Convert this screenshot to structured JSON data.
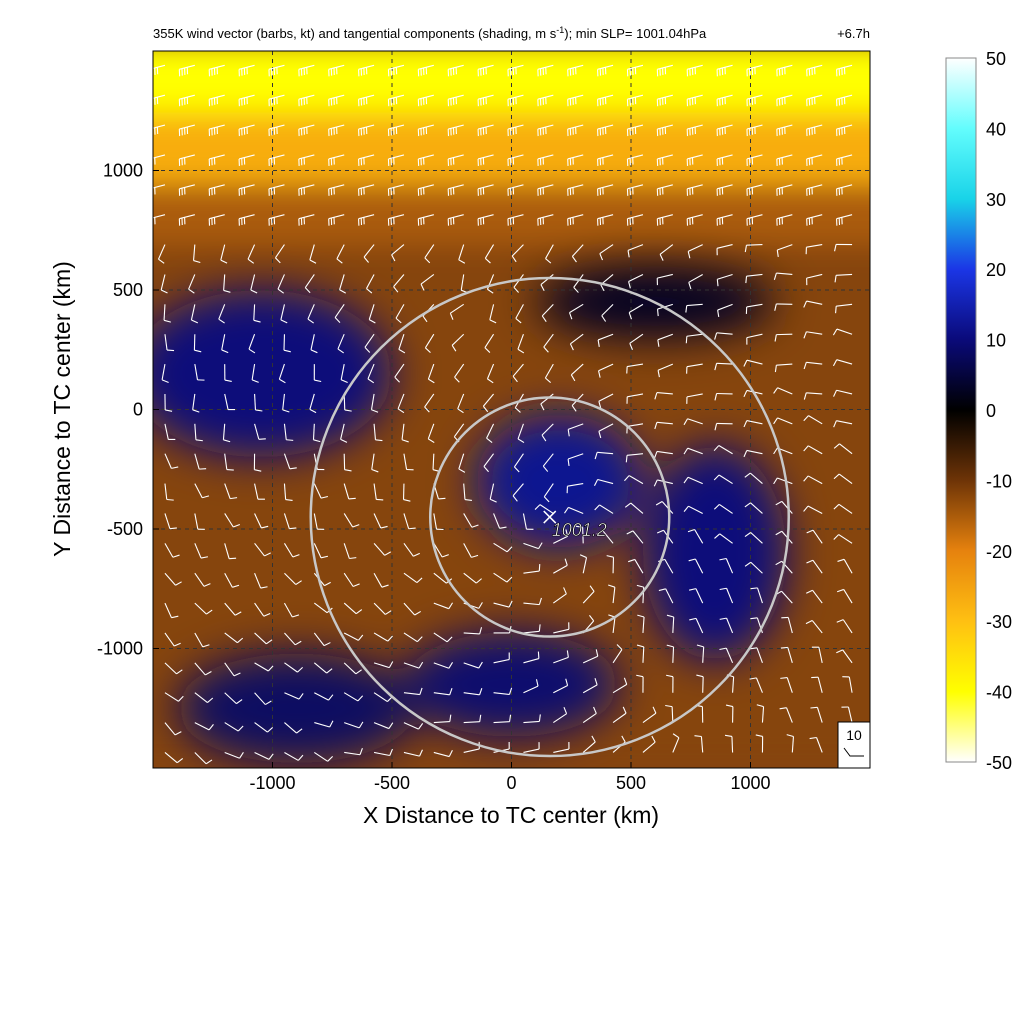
{
  "chart_data": {
    "type": "heatmap",
    "title": "355K wind vector (barbs, kt) and tangential components (shading, m s",
    "title_sup": "-1",
    "title_tail": "); min SLP= 1001.04hPa",
    "time_label": "+6.7h",
    "xlabel": "X Distance to TC center (km)",
    "ylabel": "Y Distance to TC center (km)",
    "xlim": [
      -1500,
      1500
    ],
    "ylim": [
      -1500,
      1500
    ],
    "x_ticks": [
      -1000,
      -500,
      0,
      500,
      1000
    ],
    "x_tick_labels": [
      "-1000",
      "-500",
      "0",
      "500",
      "1000"
    ],
    "y_ticks": [
      -1000,
      -500,
      0,
      500,
      1000
    ],
    "y_tick_labels": [
      "-1000",
      "-500",
      "0",
      "500",
      "1000"
    ],
    "grid": true,
    "colorbar": {
      "range": [
        -50,
        50
      ],
      "ticks": [
        50,
        40,
        30,
        20,
        10,
        0,
        -10,
        -20,
        -30,
        -40,
        -50
      ],
      "tick_labels": [
        "50",
        "40",
        "30",
        "20",
        "10",
        "0",
        "-10",
        "-20",
        "-30",
        "-40",
        "-50"
      ],
      "stops": [
        {
          "value": 50,
          "color": "#ffffff"
        },
        {
          "value": 40,
          "color": "#63fdfd"
        },
        {
          "value": 30,
          "color": "#19d3e8"
        },
        {
          "value": 20,
          "color": "#1b36e6"
        },
        {
          "value": 10,
          "color": "#0a0a7a"
        },
        {
          "value": 0,
          "color": "#000000"
        },
        {
          "value": -10,
          "color": "#6e3407"
        },
        {
          "value": -20,
          "color": "#e6820e"
        },
        {
          "value": -30,
          "color": "#ffc012"
        },
        {
          "value": -40,
          "color": "#ffff00"
        },
        {
          "value": -50,
          "color": "#ffffff"
        }
      ]
    },
    "tc_center": {
      "x": 160,
      "y": -450,
      "label": "1001.2"
    },
    "range_rings_km": [
      500,
      1000
    ],
    "reference_barb_label": "10",
    "field_bands": [
      {
        "y_from": 1500,
        "y_to": 1200,
        "tangential": -40
      },
      {
        "y_from": 1200,
        "y_to": 900,
        "tangential": -27
      },
      {
        "y_from": 900,
        "y_to": 650,
        "tangential": -15
      },
      {
        "y_from": 650,
        "y_to": -1500,
        "tangential": -12
      }
    ],
    "positive_regions": [
      {
        "x": -1050,
        "y": 150,
        "rx": 550,
        "ry": 350,
        "tangential": 10
      },
      {
        "x": 200,
        "y": -300,
        "rx": 350,
        "ry": 280,
        "tangential": 12
      },
      {
        "x": 850,
        "y": -600,
        "rx": 300,
        "ry": 450,
        "tangential": 10
      },
      {
        "x": -900,
        "y": -1250,
        "rx": 500,
        "ry": 230,
        "tangential": 8
      },
      {
        "x": 0,
        "y": -1150,
        "rx": 450,
        "ry": 220,
        "tangential": 9
      },
      {
        "x": 600,
        "y": 450,
        "rx": 500,
        "ry": 150,
        "tangential": 3
      }
    ]
  }
}
